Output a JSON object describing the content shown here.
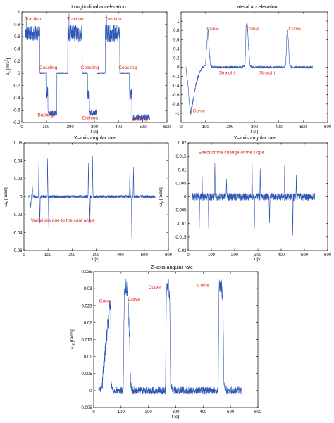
{
  "chart_data": [
    {
      "id": "long",
      "type": "line",
      "title": "Longitudinal acceleration",
      "xlabel": "t [s]",
      "ylabel": "a",
      "ylabel_sub": "x",
      "ylabel_unit": " [m/s",
      "ylabel_sup": "2",
      "ylabel_tail": "]",
      "xlim": [
        0,
        600
      ],
      "ylim": [
        -0.8,
        1.0
      ],
      "xticks": [
        "0",
        "100",
        "200",
        "300",
        "400",
        "500",
        "600"
      ],
      "yticks": [
        "-0.8",
        "-0.6",
        "-0.4",
        "-0.2",
        "0",
        "0.2",
        "0.4",
        "0.6",
        "0.8",
        "1"
      ],
      "series": [
        {
          "color": "#2d56b5",
          "segments": [
            {
              "t0": 15,
              "t1": 75,
              "level": 0.65,
              "noise": 0.12
            },
            {
              "t0": 75,
              "t1": 100,
              "level": 0.0,
              "noise": 0.006
            },
            {
              "t0": 100,
              "t1": 108,
              "level": -0.3,
              "noise": 0.1
            },
            {
              "t0": 108,
              "t1": 145,
              "level": -0.65,
              "noise": 0.05
            },
            {
              "t0": 145,
              "t1": 160,
              "level": 0.0,
              "noise": 0.006
            },
            {
              "t0": 160,
              "t1": 190,
              "level": 0.0,
              "noise": 0.006
            },
            {
              "t0": 190,
              "t1": 250,
              "level": 0.65,
              "noise": 0.14
            },
            {
              "t0": 250,
              "t1": 272,
              "level": 0.0,
              "noise": 0.006
            },
            {
              "t0": 272,
              "t1": 280,
              "level": -0.35,
              "noise": 0.1
            },
            {
              "t0": 280,
              "t1": 310,
              "level": -0.64,
              "noise": 0.05
            },
            {
              "t0": 310,
              "t1": 345,
              "level": 0.0,
              "noise": 0.006
            },
            {
              "t0": 345,
              "t1": 405,
              "level": 0.65,
              "noise": 0.14
            },
            {
              "t0": 405,
              "t1": 445,
              "level": 0.0,
              "noise": 0.006
            },
            {
              "t0": 445,
              "t1": 455,
              "level": -0.35,
              "noise": 0.1
            },
            {
              "t0": 455,
              "t1": 530,
              "level": -0.72,
              "noise": 0.05
            }
          ],
          "spikes": [
            [
              18,
              0.92
            ],
            [
              195,
              0.98
            ],
            [
              350,
              0.95
            ]
          ]
        }
      ],
      "annotations": [
        {
          "text": "Traction",
          "x": 12,
          "y": 0.87
        },
        {
          "text": "Traction",
          "x": 187,
          "y": 0.87
        },
        {
          "text": "Traction",
          "x": 343,
          "y": 0.87
        },
        {
          "text": "Coasting",
          "x": 72,
          "y": 0.07
        },
        {
          "text": "Coasting",
          "x": 244,
          "y": 0.07
        },
        {
          "text": "Coasting",
          "x": 400,
          "y": 0.07
        },
        {
          "text": "Braking",
          "x": 65,
          "y": -0.7
        },
        {
          "text": "Braking",
          "x": 250,
          "y": -0.75
        },
        {
          "text": "Braking",
          "x": 456,
          "y": -0.77
        }
      ]
    },
    {
      "id": "lat",
      "type": "line",
      "title": "Lateral acceleration",
      "xlabel": "t [s]",
      "xlim": [
        0,
        600
      ],
      "ylim": [
        -1.2,
        1.2
      ],
      "xticks": [
        "0",
        "100",
        "200",
        "300",
        "400",
        "500",
        "600"
      ],
      "yticks": [
        "-1",
        "-0.8",
        "-0.6",
        "-0.4",
        "-0.2",
        "0",
        "0.2",
        "0.4",
        "0.6",
        "0.8",
        "1"
      ],
      "series": [
        {
          "color": "#2d56b5",
          "keypoints": [
            [
              20,
              0.0
            ],
            [
              28,
              -0.4
            ],
            [
              35,
              -0.85
            ],
            [
              40,
              -1.0
            ],
            [
              48,
              -0.75
            ],
            [
              60,
              -0.4
            ],
            [
              75,
              -0.12
            ],
            [
              88,
              0.0
            ],
            [
              100,
              0.05
            ],
            [
              106,
              0.55
            ],
            [
              110,
              0.82
            ],
            [
              114,
              0.5
            ],
            [
              120,
              0.05
            ],
            [
              130,
              0.0
            ],
            [
              250,
              0.0
            ],
            [
              262,
              0.05
            ],
            [
              266,
              0.9
            ],
            [
              270,
              0.98
            ],
            [
              275,
              0.55
            ],
            [
              282,
              0.05
            ],
            [
              290,
              0.0
            ],
            [
              300,
              0.0
            ],
            [
              420,
              0.0
            ],
            [
              428,
              0.05
            ],
            [
              434,
              0.82
            ],
            [
              438,
              0.7
            ],
            [
              443,
              0.1
            ],
            [
              450,
              0.0
            ],
            [
              540,
              0.0
            ]
          ],
          "noise": 0.025
        }
      ],
      "annotations": [
        {
          "text": "Curve",
          "x": 105,
          "y": 0.8
        },
        {
          "text": "Curve",
          "x": 270,
          "y": 0.8
        },
        {
          "text": "Curve",
          "x": 440,
          "y": 0.8
        },
        {
          "text": "Curve",
          "x": 48,
          "y": -0.98
        },
        {
          "text": "Straight",
          "x": 155,
          "y": -0.15
        },
        {
          "text": "Straight",
          "x": 320,
          "y": -0.15
        }
      ]
    },
    {
      "id": "wx",
      "type": "line",
      "title": "X–axis angular rate",
      "xlabel": "t [s]",
      "ylabel": "ω",
      "ylabel_sub": "x",
      "ylabel_unit": " [rad/s]",
      "xlim": [
        0,
        600
      ],
      "ylim": [
        -0.06,
        0.06
      ],
      "xticks": [
        "0",
        "100",
        "200",
        "300",
        "400",
        "500",
        "600"
      ],
      "yticks": [
        "-0.06",
        "-0.04",
        "-0.02",
        "0",
        "0.02",
        "0.04",
        "0.06"
      ],
      "series": [
        {
          "color": "#2d56b5",
          "noise": 0.0018,
          "range": [
            18,
            545
          ],
          "spikes": [
            [
              28,
              -0.012,
              3
            ],
            [
              35,
              0.012,
              3
            ],
            [
              62,
              0.038,
              2
            ],
            [
              66,
              -0.03,
              2
            ],
            [
              98,
              0.042,
              2
            ],
            [
              103,
              -0.035,
              2
            ],
            [
              268,
              0.038,
              2
            ],
            [
              274,
              -0.028,
              2
            ],
            [
              285,
              0.044,
              2
            ],
            [
              440,
              0.03,
              2
            ],
            [
              448,
              -0.045,
              2
            ],
            [
              455,
              0.034,
              2
            ]
          ]
        }
      ],
      "annotations": [
        {
          "text": "Variations due to the cant angle",
          "x": 28,
          "y": -0.028
        }
      ]
    },
    {
      "id": "wy",
      "type": "line",
      "title": "Y–axis angular rate",
      "xlabel": "t [s]",
      "ylabel": "ω",
      "ylabel_sub": "y",
      "ylabel_unit": " [rad/s]",
      "xlim": [
        0,
        600
      ],
      "ylim": [
        -0.02,
        0.02
      ],
      "xticks": [
        "0",
        "100",
        "200",
        "300",
        "400",
        "500",
        "600"
      ],
      "yticks": [
        "-0.02",
        "-0.015",
        "-0.01",
        "-0.005",
        "0",
        "0.005",
        "0.01",
        "0.015",
        "0.02"
      ],
      "series": [
        {
          "color": "#2d56b5",
          "noise": 0.0014,
          "range": [
            18,
            545
          ],
          "spikes": [
            [
              48,
              -0.013,
              2
            ],
            [
              60,
              0.008,
              2
            ],
            [
              88,
              -0.012,
              2
            ],
            [
              115,
              0.012,
              2
            ],
            [
              165,
              0.007,
              2
            ],
            [
              275,
              0.014,
              2
            ],
            [
              285,
              -0.012,
              2
            ],
            [
              310,
              0.01,
              2
            ],
            [
              350,
              -0.011,
              2
            ],
            [
              415,
              0.011,
              2
            ],
            [
              450,
              -0.015,
              2
            ],
            [
              465,
              0.007,
              2
            ]
          ]
        }
      ],
      "annotations": [
        {
          "text": "Effect of the change of the slope",
          "x": 45,
          "y": 0.016
        }
      ]
    },
    {
      "id": "wz",
      "type": "line",
      "title": "Z–axis angular rate",
      "xlabel": "t [s]",
      "ylabel": "ω",
      "ylabel_sub": "z",
      "ylabel_unit": " [rad/s]",
      "xlim": [
        0,
        600
      ],
      "ylim": [
        -0.005,
        0.035
      ],
      "xticks": [
        "0",
        "100",
        "200",
        "300",
        "400",
        "500",
        "600"
      ],
      "yticks": [
        "-0.005",
        "0",
        "0.005",
        "0.01",
        "0.015",
        "0.02",
        "0.025",
        "0.03",
        "0.035"
      ],
      "series": [
        {
          "color": "#2d56b5",
          "keypoints": [
            [
              18,
              0.0
            ],
            [
              30,
              0.001
            ],
            [
              40,
              0.01
            ],
            [
              50,
              0.018
            ],
            [
              58,
              0.024
            ],
            [
              62,
              0.026
            ],
            [
              63,
              0.002
            ],
            [
              70,
              0.0
            ],
            [
              108,
              0.0
            ],
            [
              112,
              0.029
            ],
            [
              117,
              0.031
            ],
            [
              125,
              0.029
            ],
            [
              132,
              0.012
            ],
            [
              135,
              0.002
            ],
            [
              140,
              0.0
            ],
            [
              262,
              0.0
            ],
            [
              266,
              0.031
            ],
            [
              272,
              0.031
            ],
            [
              278,
              0.028
            ],
            [
              281,
              0.002
            ],
            [
              290,
              0.0
            ],
            [
              455,
              0.0
            ],
            [
              458,
              0.03
            ],
            [
              465,
              0.031
            ],
            [
              472,
              0.028
            ],
            [
              476,
              0.002
            ],
            [
              485,
              0.0
            ],
            [
              540,
              0.0
            ]
          ],
          "noise": 0.0011
        }
      ],
      "annotations": [
        {
          "text": "Curve",
          "x": 20,
          "y": 0.026
        },
        {
          "text": "Curve",
          "x": 125,
          "y": 0.0265
        },
        {
          "text": "Curve",
          "x": 200,
          "y": 0.03
        },
        {
          "text": "Curve",
          "x": 378,
          "y": 0.0305
        }
      ]
    }
  ]
}
